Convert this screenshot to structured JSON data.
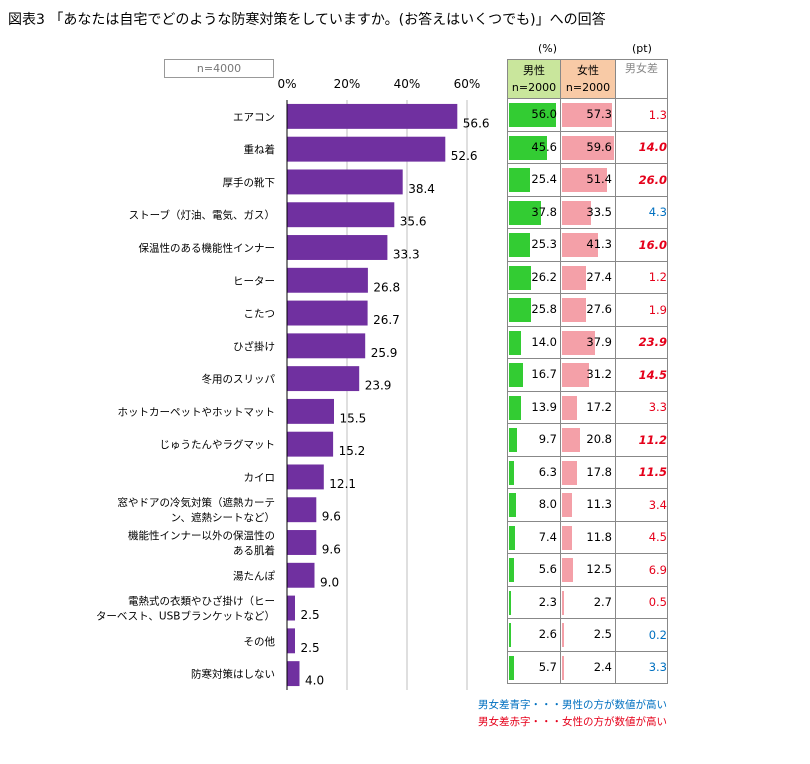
{
  "title": "図表3 「あなたは自宅でどのような防寒対策をしていますか。(お答えはいくつでも)」への回答",
  "sample_label": "n=4000",
  "units": {
    "pct": "(%)",
    "pt": "(pt)"
  },
  "headers": {
    "male": "男性",
    "male_n": "n=2000",
    "female": "女性",
    "female_n": "n=2000",
    "diff": "男女差"
  },
  "colors": {
    "bar": "#7030a0",
    "male": "#33cc33",
    "female": "#f4a0a8",
    "diff_red": "#e5001a",
    "diff_blue": "#0070c0"
  },
  "chart_data": {
    "type": "bar",
    "orientation": "horizontal",
    "categories": [
      "エアコン",
      "重ね着",
      "厚手の靴下",
      "ストーブ（灯油、電気、ガス）",
      "保温性のある機能性インナー",
      "ヒーター",
      "こたつ",
      "ひざ掛け",
      "冬用のスリッパ",
      "ホットカーペットやホットマット",
      "じゅうたんやラグマット",
      "カイロ",
      "窓やドアの冷気対策（遮熱カーテン、遮熱シートなど）",
      "機能性インナー以外の保温性のある肌着",
      "湯たんぽ",
      "電熱式の衣類やひざ掛け（ヒーターベスト、USBブランケットなど）",
      "その他",
      "防寒対策はしない"
    ],
    "category_lines": [
      [
        "エアコン"
      ],
      [
        "重ね着"
      ],
      [
        "厚手の靴下"
      ],
      [
        "ストーブ（灯油、電気、ガス）"
      ],
      [
        "保温性のある機能性インナー"
      ],
      [
        "ヒーター"
      ],
      [
        "こたつ"
      ],
      [
        "ひざ掛け"
      ],
      [
        "冬用のスリッパ"
      ],
      [
        "ホットカーペットやホットマット"
      ],
      [
        "じゅうたんやラグマット"
      ],
      [
        "カイロ"
      ],
      [
        "窓やドアの冷気対策（遮熱カーテ",
        "ン、遮熱シートなど）"
      ],
      [
        "機能性インナー以外の保温性の",
        "ある肌着"
      ],
      [
        "湯たんぽ"
      ],
      [
        "電熱式の衣類やひざ掛け（ヒー",
        "ターベスト、USBブランケットなど）"
      ],
      [
        "その他"
      ],
      [
        "防寒対策はしない"
      ]
    ],
    "values": [
      56.6,
      52.6,
      38.4,
      35.6,
      33.3,
      26.8,
      26.7,
      25.9,
      23.9,
      15.5,
      15.2,
      12.1,
      9.6,
      9.6,
      9.0,
      2.5,
      2.5,
      4.0
    ],
    "xlim": [
      0,
      60
    ],
    "xticks": [
      "0%",
      "20%",
      "40%",
      "60%"
    ],
    "grid": true,
    "male": [
      56.0,
      45.6,
      25.4,
      37.8,
      25.3,
      26.2,
      25.8,
      14.0,
      16.7,
      13.9,
      9.7,
      6.3,
      8.0,
      7.4,
      5.6,
      2.3,
      2.6,
      5.7
    ],
    "female": [
      57.3,
      59.6,
      51.4,
      33.5,
      41.3,
      27.4,
      27.6,
      37.9,
      31.2,
      17.2,
      20.8,
      17.8,
      11.3,
      11.8,
      12.5,
      2.7,
      2.5,
      2.4
    ],
    "diff": [
      "1.3",
      "14.0",
      "26.0",
      "4.3",
      "16.0",
      "1.2",
      "1.9",
      "23.9",
      "14.5",
      "3.3",
      "11.2",
      "11.5",
      "3.4",
      "4.5",
      "6.9",
      "0.5",
      "0.2",
      "3.3"
    ],
    "diff_color": [
      "red",
      "red",
      "red",
      "blue",
      "red",
      "red",
      "red",
      "red",
      "red",
      "red",
      "red",
      "red",
      "red",
      "red",
      "red",
      "red",
      "blue",
      "blue"
    ],
    "diff_emphasis": [
      false,
      true,
      true,
      false,
      true,
      false,
      false,
      true,
      true,
      false,
      true,
      true,
      false,
      false,
      false,
      false,
      false,
      false
    ]
  },
  "notes": {
    "blue": "男女差青字・・・男性の方が数値が高い",
    "red": "男女差赤字・・・女性の方が数値が高い"
  }
}
